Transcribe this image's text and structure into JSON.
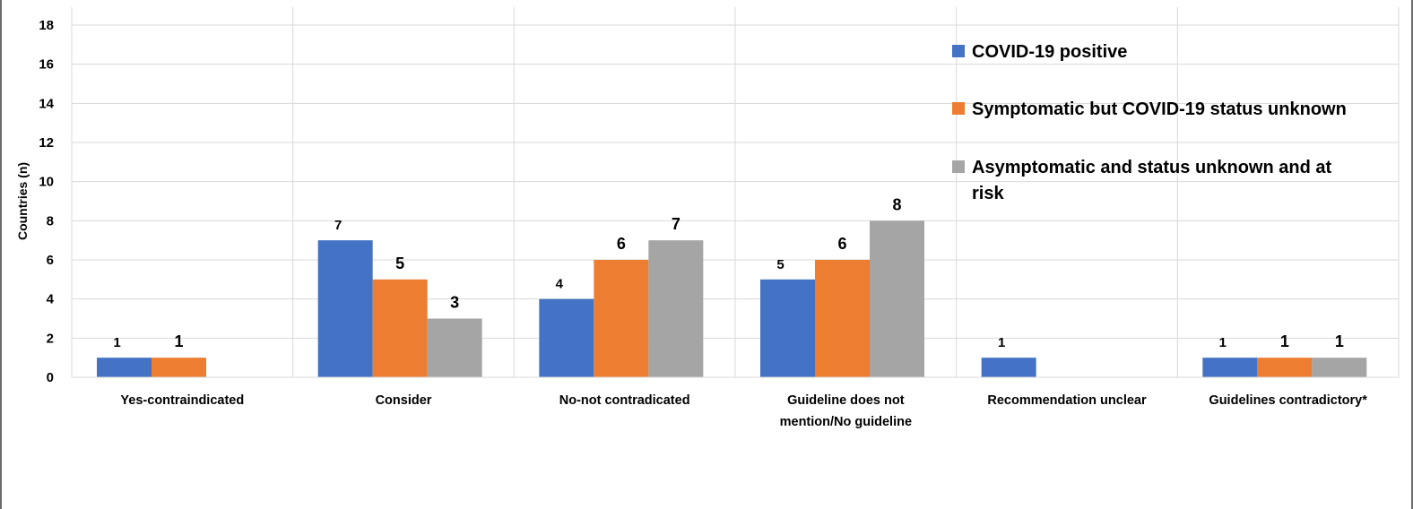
{
  "chart_data": {
    "type": "bar",
    "title": "",
    "xlabel": "",
    "ylabel": "Countries (n)",
    "ylim": [
      0,
      18
    ],
    "yticks": [
      0,
      2,
      4,
      6,
      8,
      10,
      12,
      14,
      16,
      18
    ],
    "grid": true,
    "legend_position": "top-right",
    "categories": [
      [
        "Yes-contraindicated"
      ],
      [
        "Consider"
      ],
      [
        "No-not contradicated"
      ],
      [
        "Guideline does not",
        "mention/No guideline"
      ],
      [
        "Recommendation unclear"
      ],
      [
        "Guidelines contradictory*"
      ]
    ],
    "series": [
      {
        "name": "COVID-19 positive",
        "color": "#4472C4",
        "values": [
          1,
          7,
          4,
          5,
          1,
          1
        ]
      },
      {
        "name": "Symptomatic but COVID-19 status unknown",
        "color": "#ED7D31",
        "values": [
          1,
          5,
          6,
          6,
          0,
          1
        ]
      },
      {
        "name": [
          "Asymptomatic and status unknown and at",
          "risk"
        ],
        "color": "#A5A5A5",
        "values": [
          0,
          3,
          7,
          8,
          0,
          1
        ]
      }
    ]
  }
}
